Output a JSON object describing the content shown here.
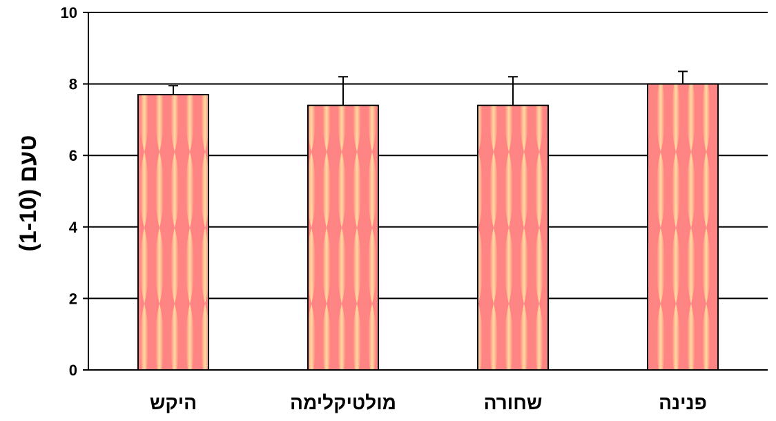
{
  "chart_data": {
    "type": "bar",
    "categories": [
      "היקש",
      "מולטיקלימה",
      "שחורה",
      "פנינה"
    ],
    "values": [
      7.7,
      7.4,
      7.4,
      8.0
    ],
    "error_plus": [
      0.25,
      0.8,
      0.8,
      0.35
    ],
    "title": "",
    "xlabel": "",
    "ylabel": "טעם  (1-10)",
    "ylim": [
      0,
      10
    ],
    "yticks": [
      0,
      2,
      4,
      6,
      8,
      10
    ],
    "grid": true,
    "legend": "none",
    "colors": {
      "bar_base": "#ff8080",
      "bar_highlight": "#ffe0a0",
      "bar_outline": "#000000",
      "gridline": "#000000"
    }
  }
}
